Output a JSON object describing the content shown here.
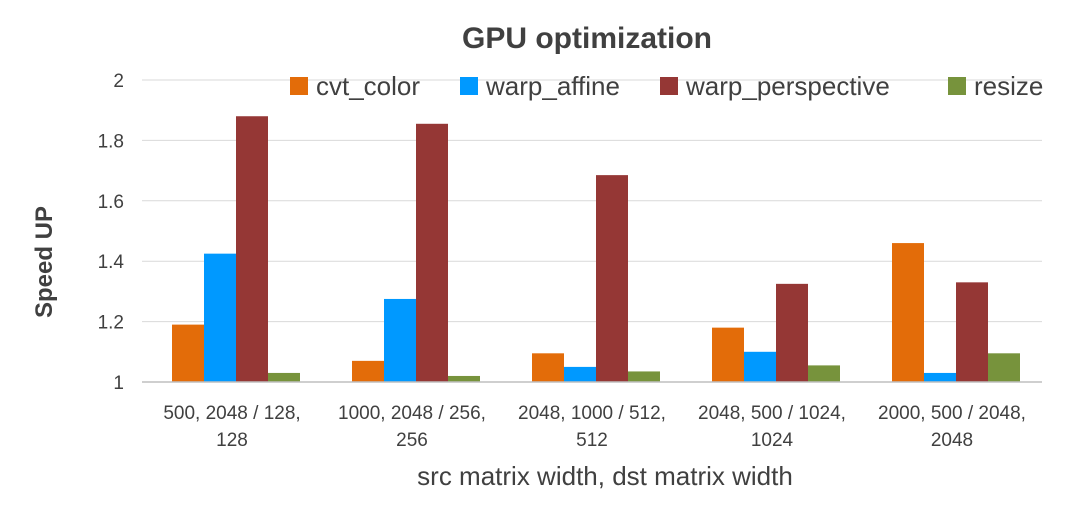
{
  "chart_data": {
    "type": "bar",
    "title": "GPU optimization",
    "xlabel": "src matrix width, dst matrix width",
    "ylabel": "Speed UP",
    "ylim": [
      1,
      2
    ],
    "yticks": [
      1,
      1.2,
      1.4,
      1.6,
      1.8,
      2
    ],
    "ytick_labels": [
      "1",
      "1.2",
      "1.4",
      "1.6",
      "1.8",
      "2"
    ],
    "grid": true,
    "legend_position": "top-right",
    "categories": [
      [
        "500, 2048 / 128,",
        "128"
      ],
      [
        "1000, 2048 / 256,",
        "256"
      ],
      [
        "2048, 1000 / 512,",
        "512"
      ],
      [
        "2048, 500 / 1024,",
        "1024"
      ],
      [
        "2000, 500 / 2048,",
        "2048"
      ]
    ],
    "series": [
      {
        "name": "cvt_color",
        "color": "#E36C09",
        "values": [
          1.19,
          1.07,
          1.095,
          1.18,
          1.46
        ]
      },
      {
        "name": "warp_affine",
        "color": "#0099FF",
        "values": [
          1.425,
          1.275,
          1.05,
          1.1,
          1.03
        ]
      },
      {
        "name": "warp_perspective",
        "color": "#953735",
        "values": [
          1.88,
          1.855,
          1.685,
          1.325,
          1.33
        ]
      },
      {
        "name": "resize",
        "color": "#77933C",
        "values": [
          1.03,
          1.02,
          1.035,
          1.055,
          1.095
        ]
      }
    ]
  }
}
